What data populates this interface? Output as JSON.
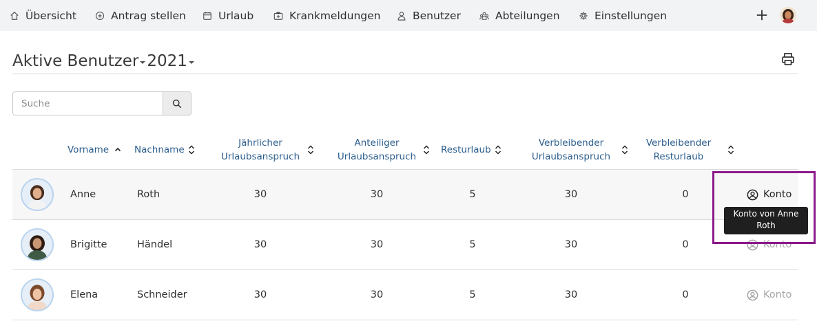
{
  "nav": {
    "items": [
      {
        "label": "Übersicht",
        "icon": "home-icon"
      },
      {
        "label": "Antrag stellen",
        "icon": "plus-circle-icon"
      },
      {
        "label": "Urlaub",
        "icon": "calendar-icon"
      },
      {
        "label": "Krankmeldungen",
        "icon": "medical-bag-icon"
      },
      {
        "label": "Benutzer",
        "icon": "user-icon"
      },
      {
        "label": "Abteilungen",
        "icon": "users-group-icon"
      },
      {
        "label": "Einstellungen",
        "icon": "gear-icon"
      }
    ]
  },
  "page": {
    "title": "Aktive Benutzer",
    "year": "2021"
  },
  "search": {
    "placeholder": "Suche"
  },
  "table": {
    "columns": [
      {
        "line1": "Vorname",
        "line2": ""
      },
      {
        "line1": "Nachname",
        "line2": ""
      },
      {
        "line1": "Jährlicher",
        "line2": "Urlaubsanspruch"
      },
      {
        "line1": "Anteiliger",
        "line2": "Urlaubsanspruch"
      },
      {
        "line1": "Resturlaub",
        "line2": ""
      },
      {
        "line1": "Verbleibender",
        "line2": "Urlaubsanspruch"
      },
      {
        "line1": "Verbleibender",
        "line2": "Resturlaub"
      }
    ],
    "rows": [
      {
        "first": "Anne",
        "last": "Roth",
        "annual": "30",
        "pro_rata": "30",
        "rest": "5",
        "remaining_annual": "30",
        "remaining_rest": "0",
        "action": "Konto"
      },
      {
        "first": "Brigitte",
        "last": "Händel",
        "annual": "30",
        "pro_rata": "30",
        "rest": "5",
        "remaining_annual": "30",
        "remaining_rest": "0",
        "action": "Konto"
      },
      {
        "first": "Elena",
        "last": "Schneider",
        "annual": "30",
        "pro_rata": "30",
        "rest": "5",
        "remaining_annual": "30",
        "remaining_rest": "0",
        "action": "Konto"
      }
    ]
  },
  "tooltip": {
    "text": "Konto von Anne Roth"
  },
  "colors": {
    "link": "#2b5d8c",
    "highlight": "#8b1a8b",
    "nav_bg": "#f2f3f5"
  }
}
